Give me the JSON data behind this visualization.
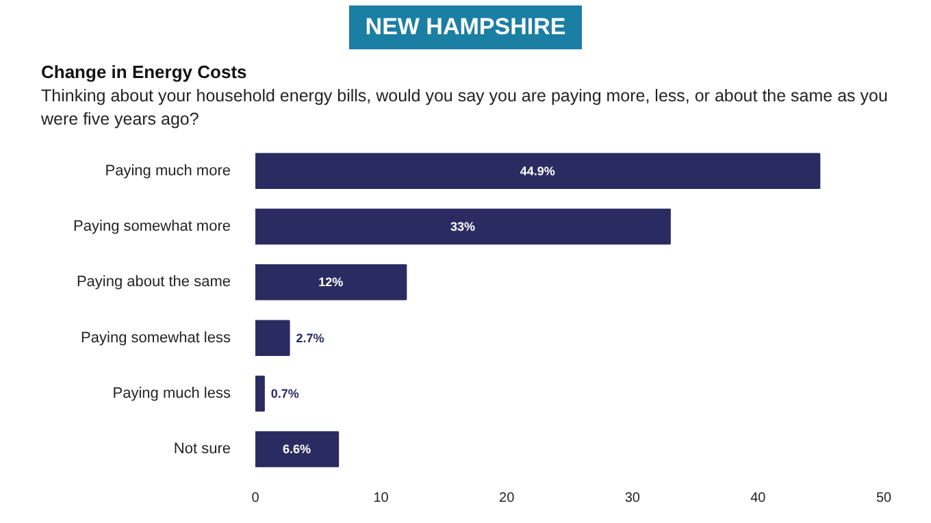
{
  "chart_data": {
    "type": "bar",
    "orientation": "horizontal",
    "annotations": [
      "NEW HAMPSHIRE"
    ],
    "title": "Change in Energy Costs",
    "subtitle": "Thinking about your household energy bills, would you say you are paying more, less, or about the same as you were five years ago?",
    "categories": [
      "Paying much more",
      "Paying somewhat more",
      "Paying about the same",
      "Paying somewhat less",
      "Paying much less",
      "Not sure"
    ],
    "values": [
      44.9,
      33,
      12,
      2.7,
      0.7,
      6.6
    ],
    "value_labels": [
      "44.9%",
      "33%",
      "12%",
      "2.7%",
      "0.7%",
      "6.6%"
    ],
    "color": "#2a2c61",
    "xlim": [
      0,
      50
    ],
    "xticks": [
      0,
      10,
      20,
      30,
      40,
      50
    ],
    "grid": false
  }
}
